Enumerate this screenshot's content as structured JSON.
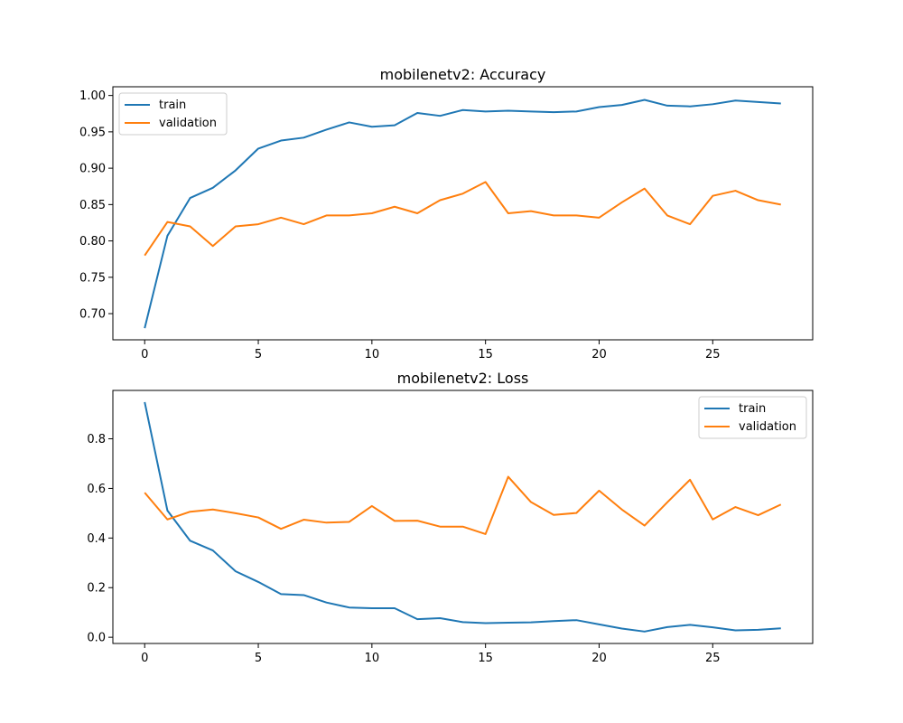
{
  "chart_data": [
    {
      "type": "line",
      "title": "mobilenetv2: Accuracy",
      "xlabel": "",
      "ylabel": "",
      "xlim": [
        -1.4,
        29.4
      ],
      "ylim": [
        0.664,
        1.012
      ],
      "xticks": [
        0,
        5,
        10,
        15,
        20,
        25
      ],
      "yticks": [
        0.7,
        0.75,
        0.8,
        0.85,
        0.9,
        0.95,
        1.0
      ],
      "ytick_labels": [
        "0.70",
        "0.75",
        "0.80",
        "0.85",
        "0.90",
        "0.95",
        "1.00"
      ],
      "legend_position": "upper-left",
      "grid": false,
      "x": [
        0,
        1,
        2,
        3,
        4,
        5,
        6,
        7,
        8,
        9,
        10,
        11,
        12,
        13,
        14,
        15,
        16,
        17,
        18,
        19,
        20,
        21,
        22,
        23,
        24,
        25,
        26,
        27,
        28
      ],
      "series": [
        {
          "name": "train",
          "color": "#1f77b4",
          "values": [
            0.68,
            0.807,
            0.859,
            0.873,
            0.897,
            0.927,
            0.938,
            0.942,
            0.953,
            0.963,
            0.957,
            0.959,
            0.976,
            0.972,
            0.98,
            0.978,
            0.979,
            0.978,
            0.977,
            0.978,
            0.984,
            0.987,
            0.994,
            0.986,
            0.985,
            0.988,
            0.993,
            0.991,
            0.989
          ]
        },
        {
          "name": "validation",
          "color": "#ff7f0e",
          "values": [
            0.78,
            0.826,
            0.82,
            0.793,
            0.82,
            0.823,
            0.832,
            0.823,
            0.835,
            0.835,
            0.838,
            0.847,
            0.838,
            0.856,
            0.865,
            0.881,
            0.838,
            0.841,
            0.835,
            0.835,
            0.832,
            0.853,
            0.872,
            0.835,
            0.823,
            0.862,
            0.869,
            0.856,
            0.85
          ]
        }
      ]
    },
    {
      "type": "line",
      "title": "mobilenetv2: Loss",
      "xlabel": "",
      "ylabel": "",
      "xlim": [
        -1.4,
        29.4
      ],
      "ylim": [
        -0.025,
        0.995
      ],
      "xticks": [
        0,
        5,
        10,
        15,
        20,
        25
      ],
      "yticks": [
        0.0,
        0.2,
        0.4,
        0.6,
        0.8
      ],
      "ytick_labels": [
        "0.0",
        "0.2",
        "0.4",
        "0.6",
        "0.8"
      ],
      "legend_position": "upper-right",
      "grid": false,
      "x": [
        0,
        1,
        2,
        3,
        4,
        5,
        6,
        7,
        8,
        9,
        10,
        11,
        12,
        13,
        14,
        15,
        16,
        17,
        18,
        19,
        20,
        21,
        22,
        23,
        24,
        25,
        26,
        27,
        28
      ],
      "series": [
        {
          "name": "train",
          "color": "#1f77b4",
          "values": [
            0.948,
            0.511,
            0.389,
            0.35,
            0.266,
            0.223,
            0.174,
            0.17,
            0.14,
            0.12,
            0.117,
            0.117,
            0.073,
            0.077,
            0.061,
            0.057,
            0.059,
            0.06,
            0.065,
            0.069,
            0.052,
            0.035,
            0.023,
            0.041,
            0.05,
            0.04,
            0.028,
            0.03,
            0.036
          ]
        },
        {
          "name": "validation",
          "color": "#ff7f0e",
          "values": [
            0.583,
            0.475,
            0.506,
            0.515,
            0.5,
            0.483,
            0.437,
            0.474,
            0.462,
            0.465,
            0.529,
            0.469,
            0.47,
            0.446,
            0.446,
            0.416,
            0.647,
            0.545,
            0.493,
            0.501,
            0.591,
            0.515,
            0.45,
            0.544,
            0.635,
            0.475,
            0.525,
            0.492,
            0.535
          ]
        }
      ]
    }
  ]
}
